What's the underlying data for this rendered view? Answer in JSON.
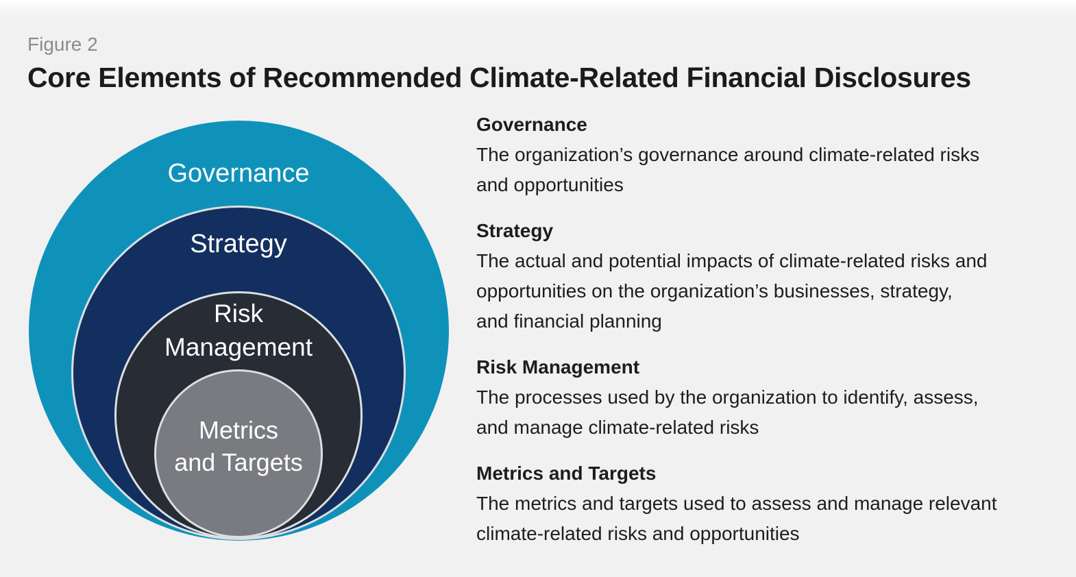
{
  "figure": {
    "label": "Figure 2",
    "title": "Core Elements of Recommended Climate-Related Financial Disclosures"
  },
  "diagram": {
    "type": "nested-circles",
    "rings": [
      {
        "name": "Governance",
        "label_lines": [
          "Governance"
        ],
        "fill": "#0f92ba"
      },
      {
        "name": "Strategy",
        "label_lines": [
          "Strategy"
        ],
        "fill": "#132f5f"
      },
      {
        "name": "Risk Management",
        "label_lines": [
          "Risk",
          "Management"
        ],
        "fill": "#272c35"
      },
      {
        "name": "Metrics and Targets",
        "label_lines": [
          "Metrics",
          "and Targets"
        ],
        "fill": "#797b80"
      }
    ],
    "ring_border_color": "#dcdfe1",
    "label_color": "#ffffff"
  },
  "descriptions": [
    {
      "heading": "Governance",
      "body_lines": [
        "The organization’s governance around climate-related risks",
        "and opportunities"
      ]
    },
    {
      "heading": "Strategy",
      "body_lines": [
        "The actual and potential impacts of climate-related risks and",
        "opportunities on the organization’s businesses, strategy,",
        "and financial planning"
      ]
    },
    {
      "heading": "Risk Management",
      "body_lines": [
        "The processes used by the organization to identify, assess,",
        "and manage climate-related risks"
      ]
    },
    {
      "heading": "Metrics and Targets",
      "body_lines": [
        "The metrics and targets used to assess and manage relevant",
        "climate-related risks and opportunities"
      ]
    }
  ],
  "colors": {
    "background": "#f1f1f2",
    "title_text": "#1b1b1b",
    "figure_label_text": "#8a8b8d",
    "description_text": "#1d1d1d"
  }
}
